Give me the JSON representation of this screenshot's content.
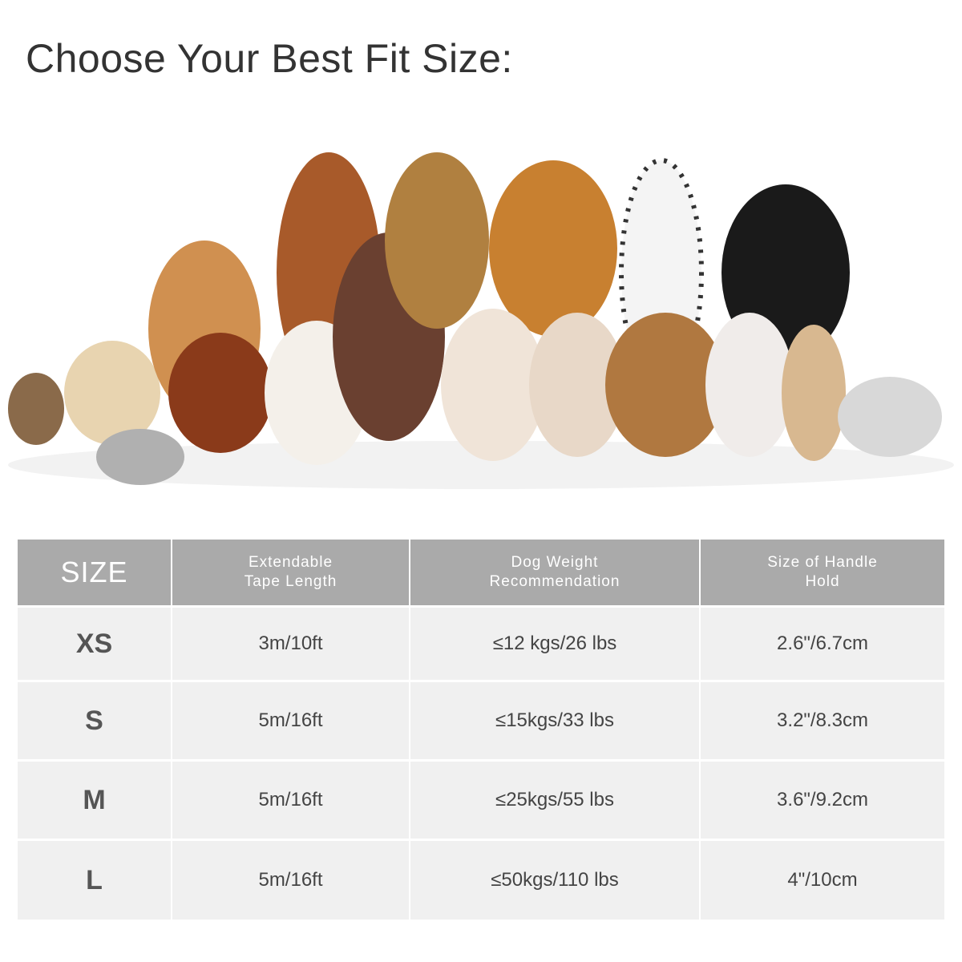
{
  "title": "Choose Your Best Fit Size:",
  "photo": {
    "description_icon": "dogs-and-cats-group-photo"
  },
  "table": {
    "headers": [
      "SIZE",
      "Extendable\nTape Length",
      "Dog Weight\nRecommendation",
      "Size of Handle\nHold"
    ],
    "rows": [
      [
        "XS",
        "3m/10ft",
        "≤12 kgs/26 lbs",
        "2.6\"/6.7cm"
      ],
      [
        "S",
        "5m/16ft",
        "≤15kgs/33 lbs",
        "3.2\"/8.3cm"
      ],
      [
        "M",
        "5m/16ft",
        "≤25kgs/55 lbs",
        "3.6\"/9.2cm"
      ],
      [
        "L",
        "5m/16ft",
        "≤50kgs/110 lbs",
        "4\"/10cm"
      ]
    ],
    "colors": {
      "header_bg": "#aaaaaa",
      "row_bg": "#f0f0f0"
    }
  }
}
